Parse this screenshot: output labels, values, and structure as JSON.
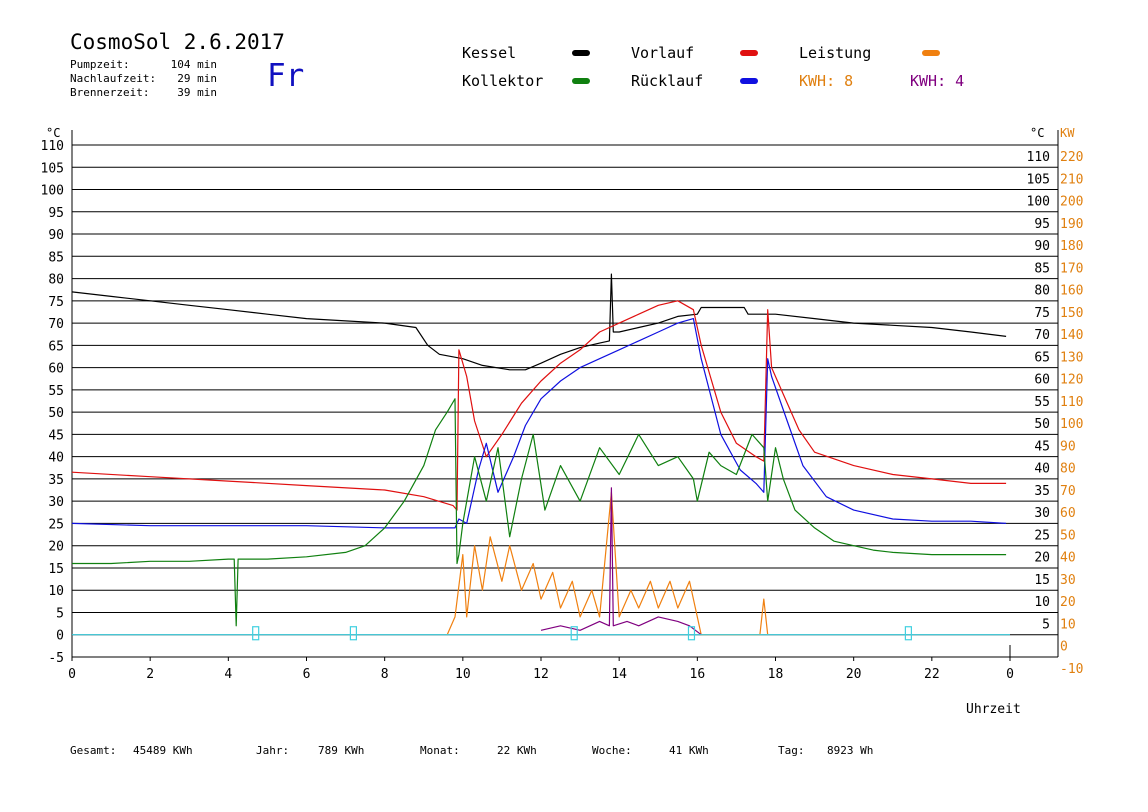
{
  "header": {
    "title": "CosmoSol 2.6.2017",
    "day": "Fr",
    "info": [
      {
        "label": "Pumpzeit:",
        "value": "104 min"
      },
      {
        "label": "Nachlaufzeit:",
        "value": "29 min"
      },
      {
        "label": "Brennerzeit:",
        "value": "39 min"
      }
    ]
  },
  "legend": {
    "items": [
      {
        "label": "Kessel",
        "color": "#000000"
      },
      {
        "label": "Vorlauf",
        "color": "#e01010"
      },
      {
        "label": "Leistung",
        "color": "#f08010"
      },
      {
        "label": "Kollektor",
        "color": "#108010"
      },
      {
        "label": "Rücklauf",
        "color": "#1010e0"
      }
    ],
    "kwh_orange": "KWH: 8",
    "kwh_purple": "KWH: 4",
    "kwh_orange_color": "#e08010",
    "kwh_purple_color": "#800080"
  },
  "footer": [
    {
      "label": "Gesamt:",
      "value": "45489 KWh"
    },
    {
      "label": "Jahr:",
      "value": "789 KWh"
    },
    {
      "label": "Monat:",
      "value": "22 KWh"
    },
    {
      "label": "Woche:",
      "value": "41 KWh"
    },
    {
      "label": "Tag:",
      "value": "8923 Wh"
    }
  ],
  "chart_data": {
    "type": "line",
    "xlabel": "Uhrzeit",
    "ylabel_left": "°C",
    "ylabel_right_temp": "°C",
    "ylabel_right_power": "KW",
    "xlim": [
      0,
      24
    ],
    "ylim": [
      -5,
      110
    ],
    "y2lim": [
      -10,
      220
    ],
    "x_ticks": [
      "0",
      "2",
      "4",
      "6",
      "8",
      "10",
      "12",
      "14",
      "16",
      "18",
      "20",
      "22",
      "0"
    ],
    "y_ticks_left": [
      "-5",
      "0",
      "5",
      "10",
      "15",
      "20",
      "25",
      "30",
      "35",
      "40",
      "45",
      "50",
      "55",
      "60",
      "65",
      "70",
      "75",
      "80",
      "85",
      "90",
      "95",
      "100",
      "105",
      "110"
    ],
    "y_ticks_right_temp": [
      "5",
      "10",
      "15",
      "20",
      "25",
      "30",
      "35",
      "40",
      "45",
      "50",
      "55",
      "60",
      "65",
      "70",
      "75",
      "80",
      "85",
      "90",
      "95",
      "100",
      "105",
      "110"
    ],
    "y_ticks_power": [
      "-10",
      "0",
      "10",
      "20",
      "30",
      "40",
      "50",
      "60",
      "70",
      "80",
      "90",
      "100",
      "110",
      "120",
      "130",
      "140",
      "150",
      "160",
      "170",
      "180",
      "190",
      "200",
      "210",
      "220"
    ],
    "grid": true,
    "series": [
      {
        "name": "Kessel",
        "color": "#000000",
        "x": [
          0,
          1,
          2,
          3,
          4,
          5,
          6,
          7,
          8,
          8.8,
          9.1,
          9.4,
          10,
          10.5,
          11.2,
          11.6,
          12,
          12.5,
          13,
          13.5,
          13.75,
          13.8,
          13.85,
          14,
          14.5,
          15,
          15.5,
          16,
          16.1,
          17.2,
          17.3,
          18,
          19,
          20,
          21,
          22,
          23,
          23.9
        ],
        "values": [
          77,
          76,
          75,
          74,
          73,
          72,
          71,
          70.5,
          70,
          69,
          65,
          63,
          62,
          60.5,
          59.5,
          59.5,
          61,
          63,
          64.5,
          65.5,
          66,
          81,
          68,
          68,
          69,
          70,
          71.5,
          72,
          73.5,
          73.5,
          72,
          72,
          71,
          70,
          69.5,
          69,
          68,
          67
        ]
      },
      {
        "name": "Vorlauf",
        "color": "#e01010",
        "x": [
          0,
          2,
          4,
          6,
          8,
          9,
          9.75,
          9.85,
          9.9,
          10.1,
          10.3,
          10.6,
          11,
          11.5,
          12,
          12.5,
          13,
          13.5,
          14,
          14.5,
          15,
          15.5,
          15.9,
          16.1,
          16.6,
          17,
          17.5,
          17.7,
          17.8,
          17.9,
          18.2,
          18.6,
          19,
          20,
          21,
          22,
          23,
          23.9
        ],
        "values": [
          36.5,
          35.5,
          34.5,
          33.5,
          32.5,
          31,
          29,
          28,
          64,
          58,
          48,
          40,
          45,
          52,
          57,
          61,
          64,
          68,
          70,
          72,
          74,
          75,
          73,
          65,
          50,
          43,
          40,
          39,
          73,
          60,
          54,
          46,
          41,
          38,
          36,
          35,
          34,
          34
        ]
      },
      {
        "name": "Rücklauf",
        "color": "#1010e0",
        "x": [
          0,
          2,
          4,
          6,
          8,
          9,
          9.8,
          9.9,
          10.1,
          10.4,
          10.6,
          10.9,
          11.3,
          11.6,
          12,
          12.5,
          13,
          13.5,
          14,
          14.5,
          15,
          15.5,
          15.9,
          16.1,
          16.6,
          17.1,
          17.5,
          17.7,
          17.8,
          17.9,
          18.3,
          18.7,
          19.3,
          20,
          21,
          22,
          23,
          23.9
        ],
        "values": [
          25,
          24.5,
          24.5,
          24.5,
          24,
          24,
          24,
          26,
          25,
          37,
          43,
          32,
          40,
          47,
          53,
          57,
          60,
          62,
          64,
          66,
          68,
          70,
          71,
          62,
          45,
          37,
          34,
          32,
          62,
          58,
          48,
          38,
          31,
          28,
          26,
          25.5,
          25.5,
          25
        ]
      },
      {
        "name": "Kollektor",
        "color": "#108010",
        "x": [
          0,
          1,
          2,
          3,
          4,
          4.15,
          4.2,
          4.25,
          4.3,
          5,
          6,
          7,
          7.5,
          8,
          8.5,
          9,
          9.3,
          9.6,
          9.8,
          9.85,
          9.9,
          10,
          10.3,
          10.6,
          10.9,
          11.2,
          11.5,
          11.8,
          12.1,
          12.5,
          13,
          13.5,
          14,
          14.5,
          15,
          15.5,
          15.9,
          16,
          16.3,
          16.6,
          17,
          17.4,
          17.7,
          17.8,
          18,
          18.2,
          18.5,
          19,
          19.5,
          20,
          20.5,
          21,
          22,
          23,
          23.9
        ],
        "values": [
          16,
          16,
          16.5,
          16.5,
          17,
          17,
          2,
          17,
          17,
          17,
          17.5,
          18.5,
          20,
          24,
          30,
          38,
          46,
          50,
          53,
          16,
          18,
          25,
          40,
          30,
          42,
          22,
          35,
          45,
          28,
          38,
          30,
          42,
          36,
          45,
          38,
          40,
          35,
          30,
          41,
          38,
          36,
          45,
          42,
          30,
          42,
          35,
          28,
          24,
          21,
          20,
          19,
          18.5,
          18,
          18,
          18
        ]
      },
      {
        "name": "Leistung",
        "color": "#f08010",
        "x": [
          9.6,
          9.8,
          10,
          10.1,
          10.3,
          10.5,
          10.7,
          11,
          11.2,
          11.5,
          11.8,
          12,
          12.3,
          12.5,
          12.8,
          13,
          13.3,
          13.5,
          13.8,
          14,
          14.3,
          14.5,
          14.8,
          15,
          15.3,
          15.5,
          15.8,
          16,
          16.1,
          17.6,
          17.7,
          17.8
        ],
        "values": [
          0,
          4,
          18,
          4,
          20,
          10,
          22,
          12,
          20,
          10,
          16,
          8,
          14,
          6,
          12,
          4,
          10,
          4,
          32,
          4,
          10,
          6,
          12,
          6,
          12,
          6,
          12,
          4,
          0,
          0,
          8,
          0
        ]
      },
      {
        "name": "Leistung 2",
        "color": "#800080",
        "x": [
          12,
          12.5,
          13,
          13.5,
          13.75,
          13.8,
          13.85,
          14.2,
          14.5,
          15,
          15.5,
          15.8,
          16.1
        ],
        "values": [
          1,
          2,
          1,
          3,
          2,
          33,
          2,
          3,
          2,
          4,
          3,
          2,
          0
        ]
      },
      {
        "name": "Pumpe",
        "color": "#40d0e0",
        "x": [
          0,
          24
        ],
        "values": [
          0,
          0
        ]
      }
    ],
    "pump_markers_x": [
      4.7,
      7.2,
      12.85,
      15.85,
      21.4
    ]
  }
}
